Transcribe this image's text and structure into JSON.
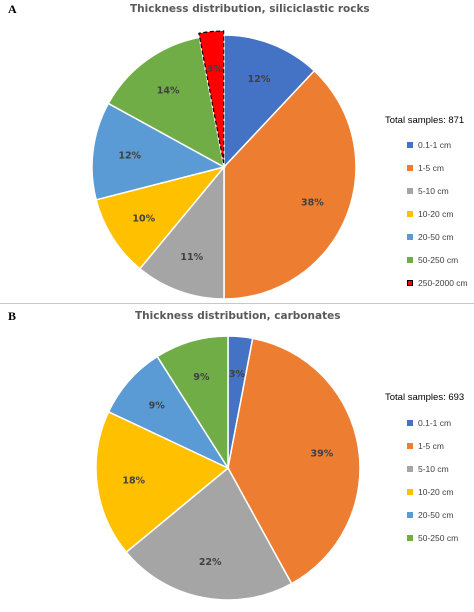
{
  "chart_data": [
    {
      "type": "pie",
      "panel_label": "A",
      "title": "Thickness distribution, siliciclastic rocks",
      "total_label": "Total samples: 871",
      "categories": [
        "0.1-1 cm",
        "1-5 cm",
        "5-10 cm",
        "10-20 cm",
        "20-50 cm",
        "50-250 cm",
        "250-2000 cm"
      ],
      "values": [
        12,
        38,
        11,
        10,
        12,
        14,
        3
      ],
      "value_labels": [
        "12%",
        "38%",
        "11%",
        "10%",
        "12%",
        "14%",
        "3%"
      ],
      "colors": [
        "#4472c4",
        "#ed7d31",
        "#a5a5a5",
        "#ffc000",
        "#5b9bd5",
        "#70ad47",
        "#ff0000"
      ],
      "highlighted_category": "250-2000 cm",
      "legend_position": "right"
    },
    {
      "type": "pie",
      "panel_label": "B",
      "title": "Thickness distribution, carbonates",
      "total_label": "Total samples: 693",
      "categories": [
        "0.1-1 cm",
        "1-5 cm",
        "5-10 cm",
        "10-20 cm",
        "20-50 cm",
        "50-250 cm"
      ],
      "values": [
        3,
        39,
        22,
        18,
        9,
        9
      ],
      "value_labels": [
        "3%",
        "39%",
        "22%",
        "18%",
        "9%",
        "9%"
      ],
      "colors": [
        "#4472c4",
        "#ed7d31",
        "#a5a5a5",
        "#ffc000",
        "#5b9bd5",
        "#70ad47"
      ],
      "legend_position": "right"
    }
  ]
}
